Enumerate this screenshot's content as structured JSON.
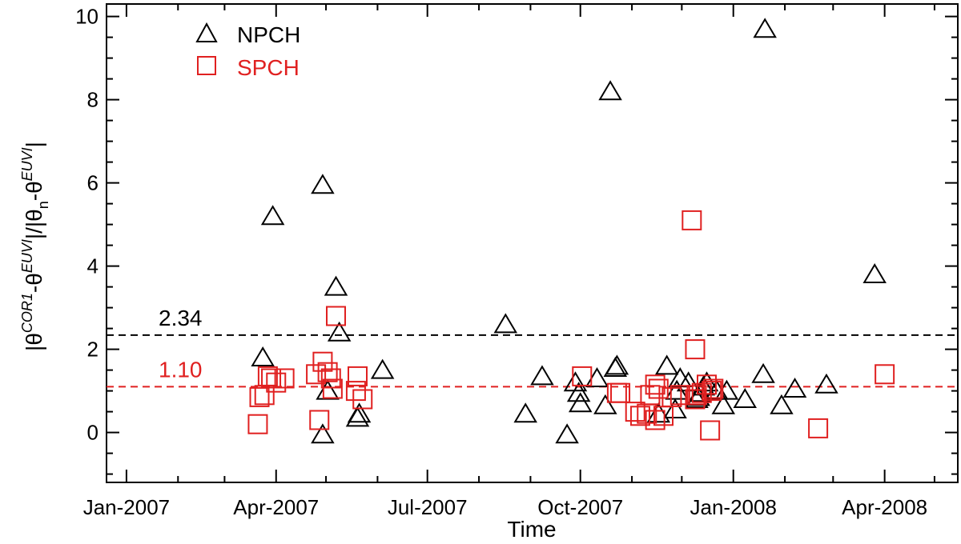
{
  "chart_data": {
    "type": "scatter",
    "title": "",
    "xlabel": "Time",
    "ylabel_parts": [
      "|θ",
      "COR1",
      "-θ",
      "EUVI",
      "|/|θ",
      "n",
      "-θ",
      "EUVI",
      "|"
    ],
    "x_type": "date",
    "xlim": [
      "2006-12-20",
      "2008-05-15"
    ],
    "ylim": [
      -1.2,
      10.3
    ],
    "x_ticks": [
      "2007-01-01",
      "2007-04-01",
      "2007-07-01",
      "2007-10-01",
      "2008-01-01",
      "2008-04-01"
    ],
    "x_tick_labels": [
      "Jan-2007",
      "Apr-2007",
      "Jul-2007",
      "Oct-2007",
      "Jan-2008",
      "Apr-2008"
    ],
    "y_ticks": [
      0,
      2,
      4,
      6,
      8,
      10
    ],
    "y_tick_labels": [
      "0",
      "2",
      "4",
      "6",
      "8",
      "10"
    ],
    "grid": false,
    "legend_position": "top-left",
    "series": [
      {
        "name": "NPCH",
        "marker": "triangle",
        "color": "#000000",
        "points": [
          [
            "2007-03-24",
            1.8
          ],
          [
            "2007-03-30",
            5.2
          ],
          [
            "2007-04-29",
            5.95
          ],
          [
            "2007-04-29",
            -0.05
          ],
          [
            "2007-05-02",
            1.0
          ],
          [
            "2007-05-07",
            3.5
          ],
          [
            "2007-05-09",
            2.4
          ],
          [
            "2007-05-20",
            0.35
          ],
          [
            "2007-05-21",
            0.45
          ],
          [
            "2007-06-04",
            1.5
          ],
          [
            "2007-08-17",
            2.6
          ],
          [
            "2007-08-29",
            0.45
          ],
          [
            "2007-09-08",
            1.35
          ],
          [
            "2007-09-23",
            -0.05
          ],
          [
            "2007-09-28",
            1.2
          ],
          [
            "2007-09-30",
            0.95
          ],
          [
            "2007-10-01",
            0.7
          ],
          [
            "2007-10-11",
            1.3
          ],
          [
            "2007-10-16",
            0.65
          ],
          [
            "2007-10-19",
            8.2
          ],
          [
            "2007-10-22",
            1.55
          ],
          [
            "2007-10-23",
            1.6
          ],
          [
            "2007-11-17",
            0.45
          ],
          [
            "2007-11-22",
            1.6
          ],
          [
            "2007-11-27",
            0.55
          ],
          [
            "2007-11-28",
            1.0
          ],
          [
            "2007-11-30",
            1.3
          ],
          [
            "2007-12-05",
            1.2
          ],
          [
            "2007-12-10",
            0.8
          ],
          [
            "2007-12-11",
            0.85
          ],
          [
            "2007-12-12",
            0.95
          ],
          [
            "2007-12-14",
            1.1
          ],
          [
            "2007-12-16",
            1.2
          ],
          [
            "2007-12-22",
            1.0
          ],
          [
            "2007-12-26",
            0.65
          ],
          [
            "2007-12-28",
            1.0
          ],
          [
            "2008-01-08",
            0.8
          ],
          [
            "2008-01-19",
            1.4
          ],
          [
            "2008-01-20",
            9.7
          ],
          [
            "2008-01-30",
            0.65
          ],
          [
            "2008-02-07",
            1.05
          ],
          [
            "2008-02-26",
            1.15
          ],
          [
            "2008-03-26",
            3.8
          ]
        ]
      },
      {
        "name": "SPCH",
        "marker": "square",
        "color": "#e02020",
        "points": [
          [
            "2007-03-21",
            0.2
          ],
          [
            "2007-03-22",
            0.85
          ],
          [
            "2007-03-25",
            0.9
          ],
          [
            "2007-03-27",
            1.35
          ],
          [
            "2007-03-29",
            1.3
          ],
          [
            "2007-04-01",
            1.2
          ],
          [
            "2007-04-06",
            1.3
          ],
          [
            "2007-04-25",
            1.4
          ],
          [
            "2007-04-27",
            0.3
          ],
          [
            "2007-04-29",
            1.7
          ],
          [
            "2007-05-02",
            1.45
          ],
          [
            "2007-05-04",
            1.3
          ],
          [
            "2007-05-05",
            1.05
          ],
          [
            "2007-05-07",
            2.8
          ],
          [
            "2007-05-19",
            1.0
          ],
          [
            "2007-05-20",
            1.35
          ],
          [
            "2007-05-23",
            0.8
          ],
          [
            "2007-10-02",
            1.35
          ],
          [
            "2007-10-23",
            0.95
          ],
          [
            "2007-10-25",
            0.95
          ],
          [
            "2007-11-03",
            0.5
          ],
          [
            "2007-11-06",
            0.4
          ],
          [
            "2007-11-10",
            0.45
          ],
          [
            "2007-11-12",
            0.9
          ],
          [
            "2007-11-15",
            1.15
          ],
          [
            "2007-11-15",
            0.3
          ],
          [
            "2007-11-17",
            1.05
          ],
          [
            "2007-11-20",
            0.4
          ],
          [
            "2007-11-25",
            0.85
          ],
          [
            "2007-11-30",
            0.9
          ],
          [
            "2007-12-07",
            5.1
          ],
          [
            "2007-12-09",
            2.0
          ],
          [
            "2007-12-09",
            0.8
          ],
          [
            "2007-12-10",
            0.9
          ],
          [
            "2007-12-13",
            0.95
          ],
          [
            "2007-12-16",
            1.15
          ],
          [
            "2007-12-18",
            0.05
          ],
          [
            "2007-12-19",
            1.0
          ],
          [
            "2007-12-20",
            1.05
          ],
          [
            "2008-02-21",
            0.1
          ],
          [
            "2008-04-01",
            1.4
          ]
        ]
      }
    ],
    "reference_lines": [
      {
        "y": 2.34,
        "label": "2.34",
        "color": "#000000"
      },
      {
        "y": 1.1,
        "label": "1.10",
        "color": "#e02020"
      }
    ]
  }
}
